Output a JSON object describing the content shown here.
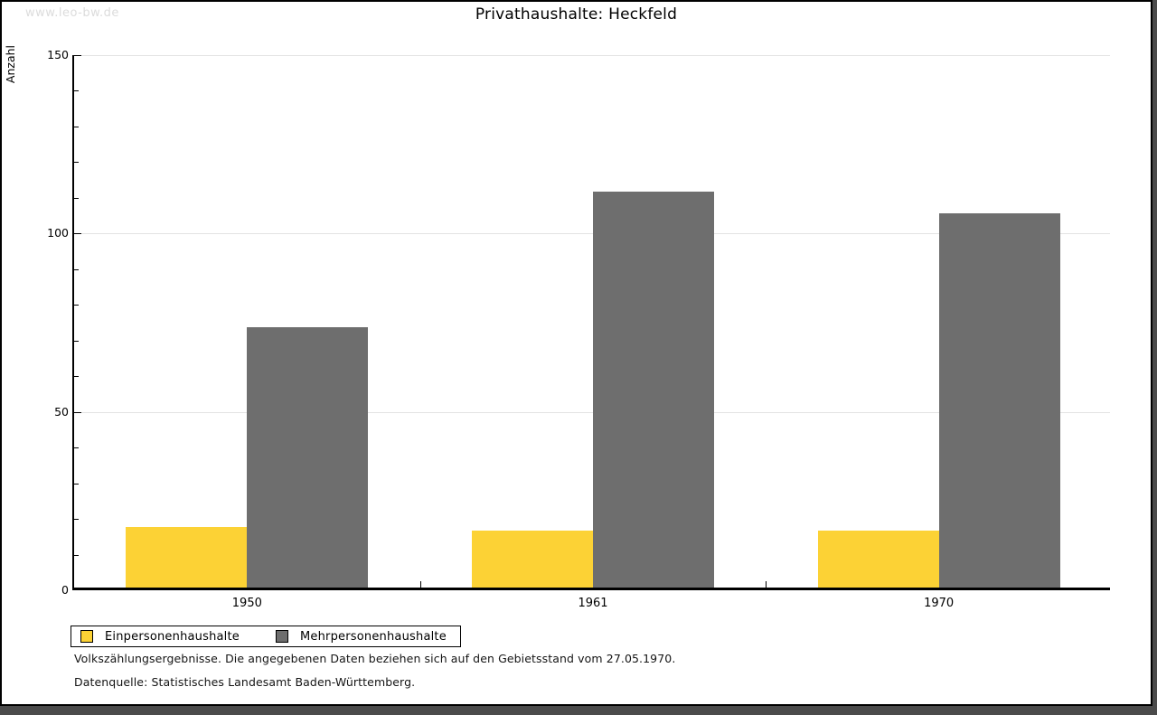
{
  "window": {
    "watermark": "www.leo-bw.de"
  },
  "chart_data": {
    "type": "bar",
    "title": "Privathaushalte: Heckfeld",
    "ylabel": "Anzahl",
    "xlabel": "",
    "categories": [
      "1950",
      "1961",
      "1970"
    ],
    "series": [
      {
        "name": "Einpersonenhaushalte",
        "color": "#FCD235",
        "values": [
          17,
          16,
          16
        ]
      },
      {
        "name": "Mehrpersonenhaushalte",
        "color": "#6E6E6E",
        "values": [
          73,
          111,
          105
        ]
      }
    ],
    "ylim": [
      0,
      150
    ],
    "yticks": [
      0,
      50,
      100,
      150
    ],
    "minor_tick_step": 10,
    "grid": true,
    "gridline_color": "#e3e3e3",
    "legend_position": "bottom-left"
  },
  "footnotes": {
    "line1": "Volkszählungsergebnisse. Die angegebenen Daten beziehen sich auf den Gebietsstand vom 27.05.1970.",
    "line2": "Datenquelle: Statistisches Landesamt Baden-Württemberg."
  }
}
